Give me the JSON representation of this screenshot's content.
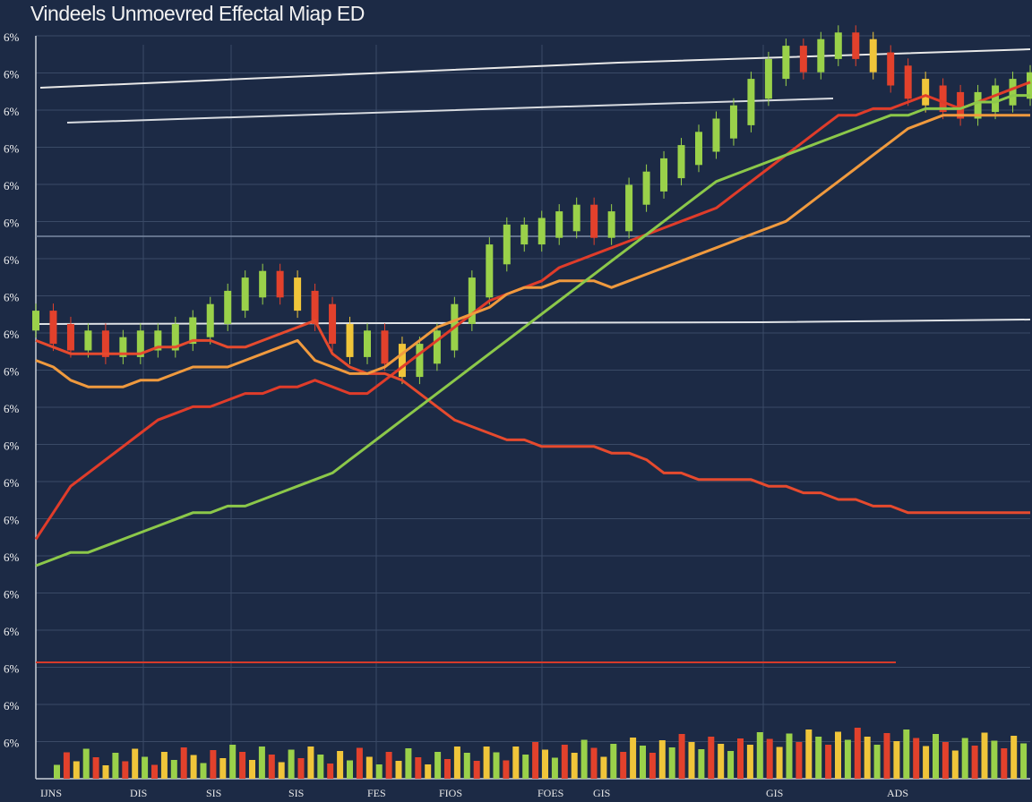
{
  "title": "Vindeels Unmoevred Effectal Miap ED",
  "colors": {
    "background": "#1c2a45",
    "grid": "#3a4a66",
    "candle_up": "#9ad14a",
    "candle_down": "#e2412c",
    "candle_alt": "#f0c53a"
  },
  "chart_data": {
    "type": "line",
    "title": "Vindeels Unmoevred Effectal Miap ED",
    "y_tick_labels": [
      "6%",
      "6%",
      "6%",
      "6%",
      "6%",
      "6%",
      "6%",
      "6%",
      "6%",
      "6%",
      "6%",
      "6%",
      "6%",
      "6%",
      "6%",
      "6%",
      "6%",
      "6%",
      "6%",
      "6%"
    ],
    "x_tick_labels": [
      "IJNS",
      "DIS",
      "SIS",
      "SIS",
      "FES",
      "FIOS",
      "FOES",
      "GIS",
      "GIS",
      "ADS"
    ],
    "x": [
      0,
      1,
      2,
      3,
      4,
      5,
      6,
      7,
      8,
      9,
      10,
      11,
      12,
      13,
      14,
      15,
      16,
      17,
      18,
      19,
      20,
      21,
      22,
      23,
      24,
      25,
      26,
      27,
      28,
      29,
      30,
      31,
      32,
      33,
      34,
      35,
      36,
      37,
      38,
      39,
      40,
      41,
      42,
      43,
      44,
      45,
      46,
      47,
      48,
      49,
      50,
      51,
      52,
      53,
      54,
      55,
      56,
      57
    ],
    "xlim": [
      0,
      57
    ],
    "ylim": [
      0,
      100
    ],
    "grid": true,
    "legend": "none",
    "series": [
      {
        "values": [
          57,
          55,
          54,
          54,
          53,
          53,
          54,
          54,
          55,
          56,
          58,
          60,
          62,
          63,
          62,
          60,
          58,
          55,
          53,
          54,
          52,
          50,
          52,
          54,
          58,
          62,
          67,
          70,
          70,
          71,
          72,
          73,
          71,
          72,
          76,
          78,
          80,
          82,
          84,
          86,
          88,
          92,
          95,
          97,
          96,
          98,
          99,
          98,
          96,
          94,
          92,
          91,
          90,
          89,
          90,
          91,
          92,
          93
        ],
        "color": "#f0c53a",
        "kind": "candles"
      },
      {
        "values": [
          24,
          28,
          32,
          34,
          36,
          38,
          40,
          42,
          43,
          44,
          44,
          45,
          46,
          46,
          47,
          47,
          48,
          47,
          46,
          46,
          48,
          50,
          52,
          54,
          56,
          58,
          60,
          61,
          62,
          63,
          65,
          66,
          67,
          68,
          69,
          70,
          71,
          72,
          73,
          74,
          76,
          78,
          80,
          82,
          84,
          86,
          88,
          88,
          89,
          89,
          90,
          91,
          90,
          89,
          90,
          91,
          92,
          93
        ],
        "color": "#e03c2a"
      },
      {
        "values": [
          54,
          53,
          52,
          52,
          52,
          52,
          52,
          53,
          53,
          54,
          54,
          53,
          53,
          54,
          55,
          56,
          57,
          52,
          50,
          49,
          49,
          48,
          46,
          44,
          42,
          41,
          40,
          39,
          39,
          38,
          38,
          38,
          38,
          37,
          37,
          36,
          34,
          34,
          33,
          33,
          33,
          33,
          32,
          32,
          31,
          31,
          30,
          30,
          29,
          29,
          28,
          28,
          28,
          28,
          28,
          28,
          28,
          28
        ],
        "color": "#e64a2e"
      },
      {
        "values": [
          51,
          50,
          48,
          47,
          47,
          47,
          48,
          48,
          49,
          50,
          50,
          50,
          51,
          52,
          53,
          54,
          51,
          50,
          49,
          49,
          50,
          52,
          54,
          56,
          57,
          58,
          59,
          61,
          62,
          62,
          63,
          63,
          63,
          62,
          63,
          64,
          65,
          66,
          67,
          68,
          69,
          70,
          71,
          72,
          74,
          76,
          78,
          80,
          82,
          84,
          86,
          87,
          88,
          88,
          88,
          88,
          88,
          88
        ],
        "color": "#f09a3e"
      },
      {
        "values": [
          20,
          21,
          22,
          22,
          23,
          24,
          25,
          26,
          27,
          28,
          28,
          29,
          29,
          30,
          31,
          32,
          33,
          34,
          36,
          38,
          40,
          42,
          44,
          46,
          48,
          50,
          52,
          54,
          56,
          58,
          60,
          62,
          64,
          66,
          68,
          70,
          72,
          74,
          76,
          78,
          79,
          80,
          81,
          82,
          83,
          84,
          85,
          86,
          87,
          88,
          88,
          89,
          89,
          89,
          90,
          90,
          91,
          91
        ],
        "color": "#8cc84a"
      }
    ]
  }
}
